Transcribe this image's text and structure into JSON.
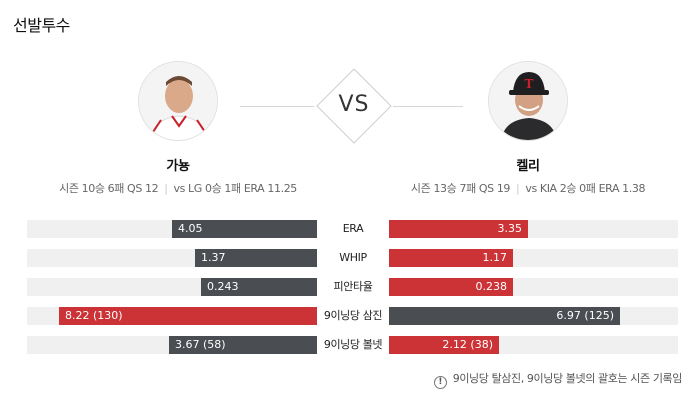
{
  "section_title": "선발투수",
  "vs_text": "VS",
  "left_player": {
    "name": "가뇽",
    "season": "시즌 10승 6패 QS 12",
    "vs": "vs LG 0승 1패 ERA 11.25"
  },
  "right_player": {
    "name": "켈리",
    "season": "시즌 13승 7패 QS 19",
    "vs": "vs KIA 2승 0패 ERA 1.38"
  },
  "colors": {
    "highlight": "#cc3337",
    "normal": "#4a4d52",
    "track": "#f0f0f0"
  },
  "stats": [
    {
      "label": "ERA",
      "left": {
        "text": "4.05",
        "fill": 0.5,
        "color": "gray"
      },
      "right": {
        "text": "3.35",
        "fill": 0.48,
        "color": "red"
      }
    },
    {
      "label": "WHIP",
      "left": {
        "text": "1.37",
        "fill": 0.42,
        "color": "gray"
      },
      "right": {
        "text": "1.17",
        "fill": 0.43,
        "color": "red"
      }
    },
    {
      "label": "피안타율",
      "left": {
        "text": "0.243",
        "fill": 0.4,
        "color": "gray"
      },
      "right": {
        "text": "0.238",
        "fill": 0.43,
        "color": "red"
      }
    },
    {
      "label": "9이닝당 삼진",
      "left": {
        "text": "8.22 (130)",
        "fill": 0.89,
        "color": "red"
      },
      "right": {
        "text": "6.97 (125)",
        "fill": 0.8,
        "color": "gray"
      }
    },
    {
      "label": "9이닝당 볼넷",
      "left": {
        "text": "3.67 (58)",
        "fill": 0.51,
        "color": "gray"
      },
      "right": {
        "text": "2.12 (38)",
        "fill": 0.38,
        "color": "red"
      }
    }
  ],
  "footnote": "9이닝당 탈삼진, 9이닝당 볼넷의 괄호는 시즌 기록임",
  "footnote_icon": "info-icon"
}
